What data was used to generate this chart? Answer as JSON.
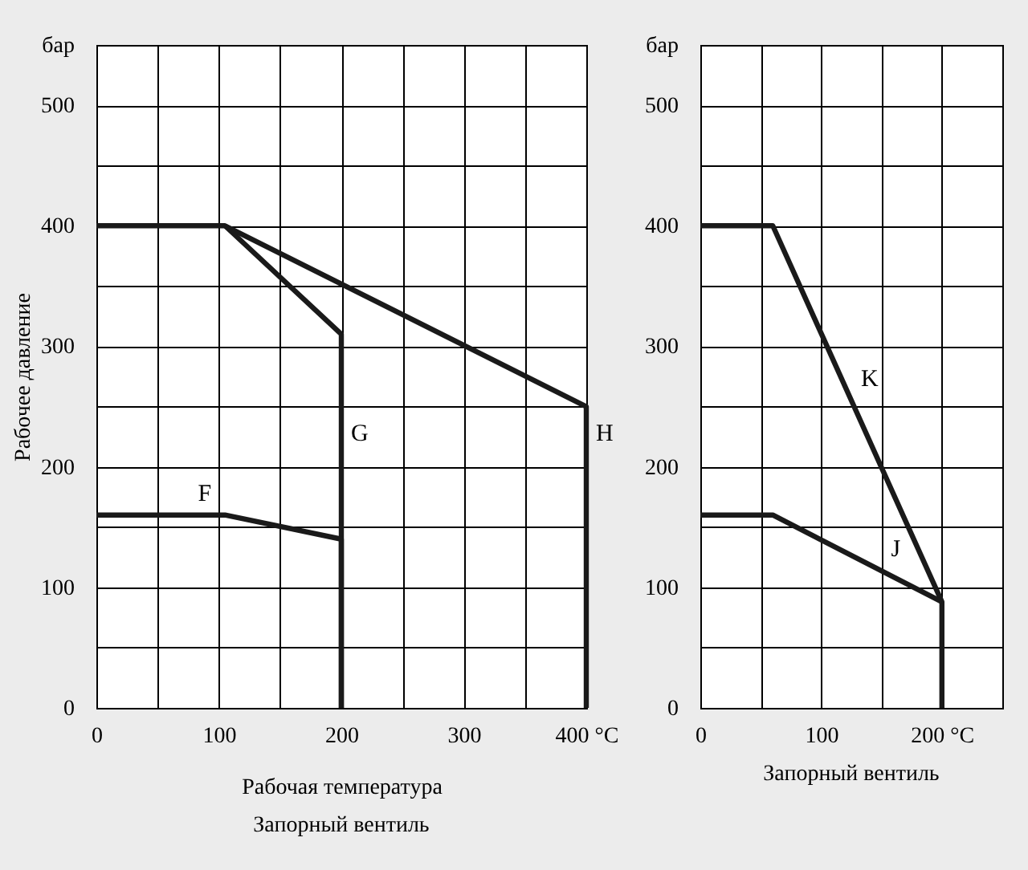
{
  "chart_data": [
    {
      "type": "line",
      "title": "Запорный вентиль",
      "xlabel": "Рабочая температура",
      "ylabel": "Рабочее давление",
      "xlim": [
        0,
        400
      ],
      "ylim": [
        0,
        550
      ],
      "xticks": [
        0,
        {
          "value": 50,
          "label": null
        },
        100,
        {
          "value": 150,
          "label": null
        },
        200,
        {
          "value": 250,
          "label": null
        },
        300,
        {
          "value": 350,
          "label": null
        },
        {
          "value": 400,
          "label": "400 °C"
        }
      ],
      "yticks": [
        0,
        {
          "value": 50,
          "label": null
        },
        100,
        {
          "value": 150,
          "label": null
        },
        200,
        {
          "value": 250,
          "label": null
        },
        300,
        {
          "value": 350,
          "label": null
        },
        400,
        {
          "value": 450,
          "label": null
        },
        500,
        {
          "value": 550,
          "label": "бар"
        }
      ],
      "grid": true,
      "legend": false,
      "marker": "none",
      "line_style": "solid",
      "series": [
        {
          "color": "#1a1a1a",
          "x": [
            0,
            105,
            400,
            400
          ],
          "values": [
            400,
            400,
            250,
            0
          ]
        },
        {
          "color": "#1a1a1a",
          "x": [
            105,
            200,
            200
          ],
          "values": [
            400,
            310,
            0
          ]
        },
        {
          "color": "#1a1a1a",
          "x": [
            0,
            105,
            200,
            200
          ],
          "values": [
            160,
            160,
            140,
            0
          ]
        }
      ],
      "annotations": [
        {
          "text": "G",
          "x": 200,
          "y": 210
        },
        {
          "text": "H",
          "x": 400,
          "y": 210
        },
        {
          "text": "F",
          "x": 75,
          "y": 160
        }
      ]
    },
    {
      "type": "line",
      "title": "Запорный вентиль",
      "xlim": [
        0,
        250
      ],
      "ylim": [
        0,
        550
      ],
      "xticks": [
        0,
        {
          "value": 50,
          "label": null
        },
        100,
        {
          "value": 150,
          "label": null
        },
        {
          "value": 200,
          "label": "200 °C"
        },
        {
          "value": 250,
          "label": null
        }
      ],
      "yticks": [
        0,
        {
          "value": 50,
          "label": null
        },
        100,
        {
          "value": 150,
          "label": null
        },
        200,
        {
          "value": 250,
          "label": null
        },
        300,
        {
          "value": 350,
          "label": null
        },
        400,
        {
          "value": 450,
          "label": null
        },
        500,
        {
          "value": 550,
          "label": "бар"
        }
      ],
      "grid": true,
      "legend": false,
      "marker": "none",
      "line_style": "solid",
      "series": [
        {
          "color": "#1a1a1a",
          "x": [
            0,
            60,
            200,
            200
          ],
          "values": [
            400,
            400,
            88,
            0
          ]
        },
        {
          "color": "#1a1a1a",
          "x": [
            0,
            60,
            200
          ],
          "values": [
            160,
            160,
            88
          ]
        }
      ],
      "annotations": [
        {
          "text": "K",
          "x": 125,
          "y": 255
        },
        {
          "text": "J",
          "x": 150,
          "y": 114
        }
      ]
    }
  ]
}
